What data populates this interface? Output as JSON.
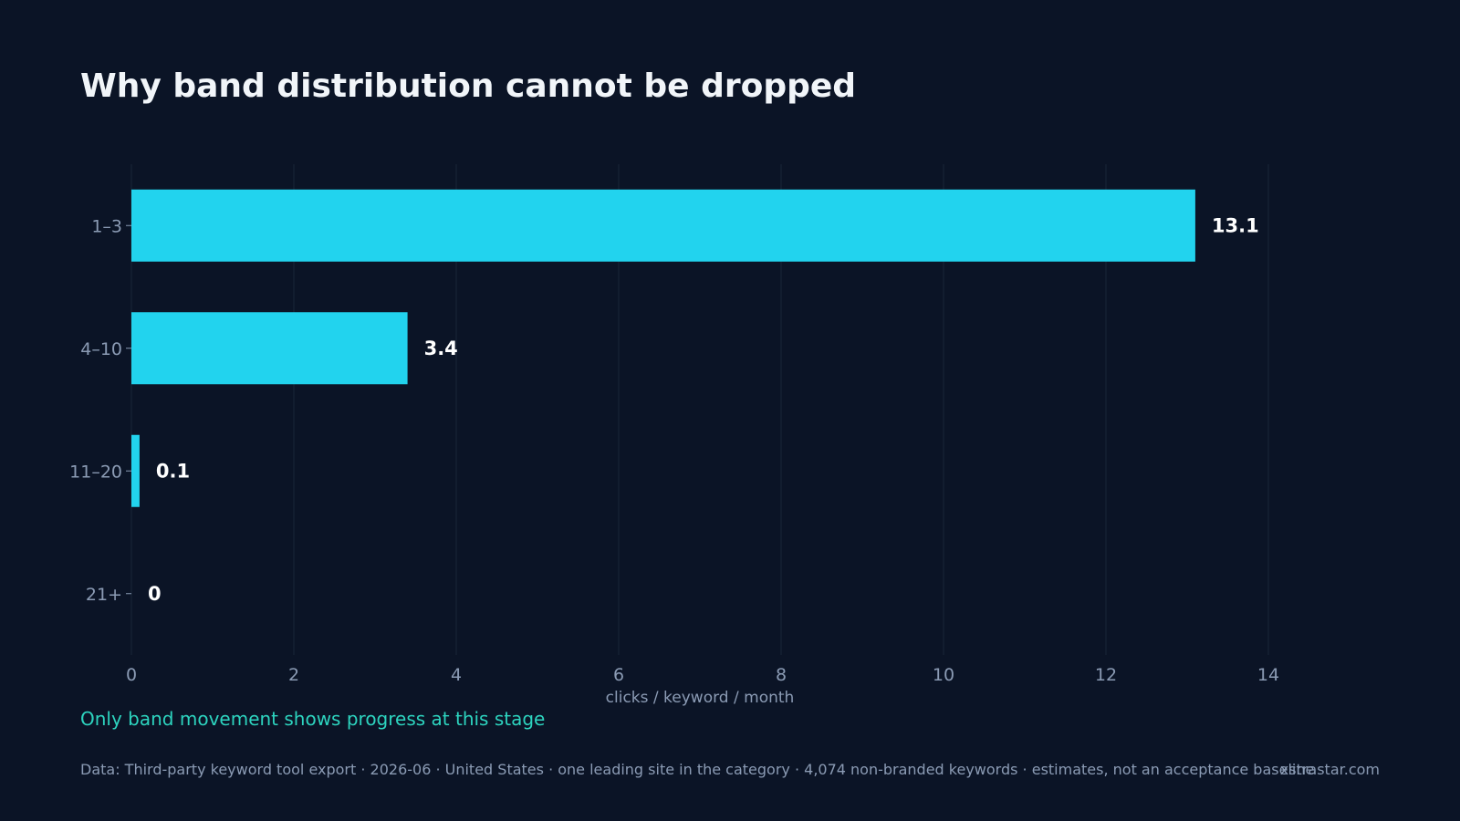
{
  "chart_data": {
    "type": "bar",
    "orientation": "horizontal",
    "title": "Why band distribution cannot be dropped",
    "categories": [
      "1–3",
      "4–10",
      "11–20",
      "21+"
    ],
    "values": [
      13.1,
      3.4,
      0.1,
      0
    ],
    "value_labels": [
      "13.1",
      "3.4",
      "0.1",
      "0"
    ],
    "xlabel": "clicks / keyword / month",
    "ylabel": "",
    "xlim": [
      0,
      14
    ],
    "xticks": [
      0,
      2,
      4,
      6,
      8,
      10,
      12,
      14
    ],
    "grid": "vertical",
    "legend": "none"
  },
  "insight": "Only band movement shows progress at this stage",
  "footer": {
    "source": "Data: Third-party keyword tool export · 2026-06 · United States · one leading site in the category · 4,074 non-branded keywords · estimates, not an acceptance baseline",
    "brand": "xstrastar.com"
  },
  "colors": {
    "background": "#0b1426",
    "bar": "#22d3ee",
    "grid": "#1a2638",
    "axis_text": "#8b9bb4",
    "value_label": "#ffffff",
    "insight": "#2dd4bf"
  }
}
